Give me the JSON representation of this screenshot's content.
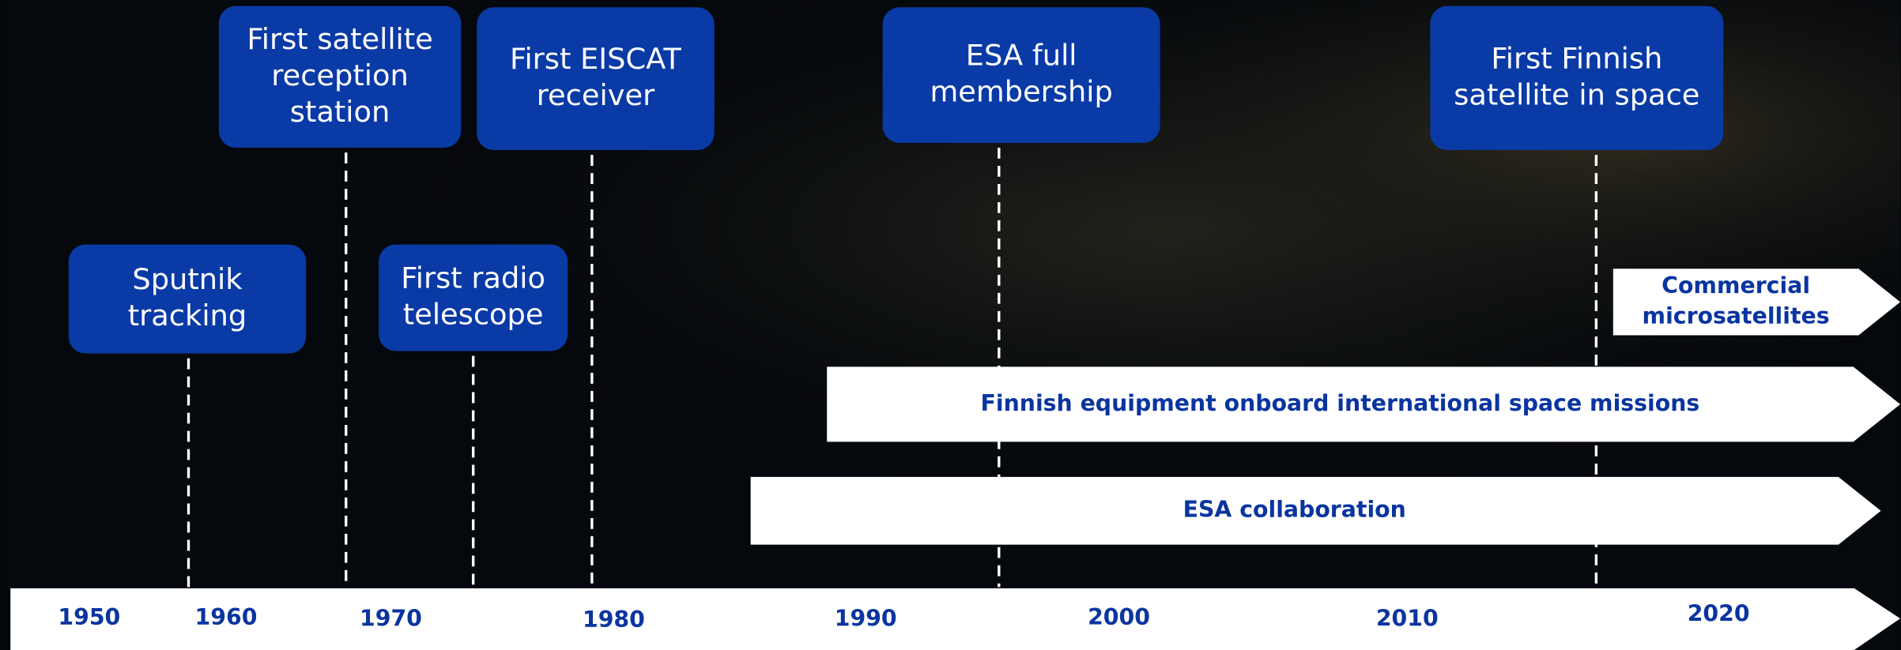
{
  "events": [
    {
      "lines": [
        "Sputnik",
        "tracking"
      ]
    },
    {
      "lines": [
        "First satellite",
        "reception",
        "station"
      ]
    },
    {
      "lines": [
        "First radio",
        "telescope"
      ]
    },
    {
      "lines": [
        "First EISCAT",
        "receiver"
      ]
    },
    {
      "lines": [
        "ESA full",
        "membership"
      ]
    },
    {
      "lines": [
        "First Finnish",
        "satellite in space"
      ]
    }
  ],
  "bars": [
    {
      "lines": [
        "Commercial",
        "microsatellites"
      ]
    },
    {
      "lines": [
        "Finnish equipment onboard international space missions"
      ]
    },
    {
      "lines": [
        "ESA collaboration"
      ]
    }
  ],
  "axis": {
    "years": [
      "1950",
      "1960",
      "1970",
      "1980",
      "1990",
      "2000",
      "2010",
      "2020"
    ]
  }
}
